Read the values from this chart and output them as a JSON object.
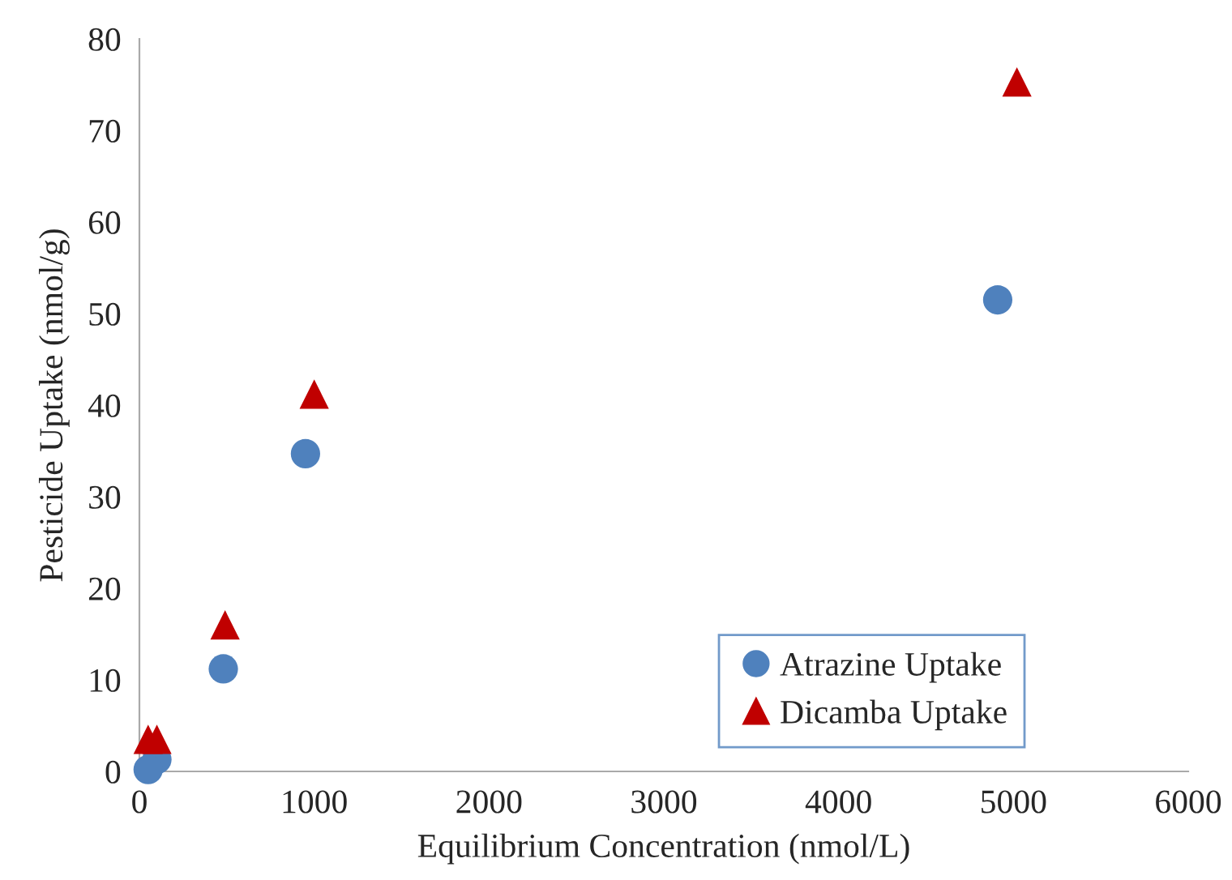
{
  "chart_data": {
    "type": "scatter",
    "xlabel": "Equilibrium Concentration (nmol/L)",
    "ylabel": "Pesticide Uptake (nmol/g)",
    "xlim": [
      0,
      6000
    ],
    "xticks": [
      0,
      1000,
      2000,
      3000,
      4000,
      5000,
      6000
    ],
    "ylim": [
      0,
      80
    ],
    "yticks": [
      0,
      10,
      20,
      30,
      40,
      50,
      60,
      70,
      80
    ],
    "grid": false,
    "legend": "bottom right",
    "series": [
      {
        "name": "Atrazine Uptake",
        "color": "#4f81bd",
        "marker": "circle",
        "x": [
          50,
          100,
          480,
          950,
          4910
        ],
        "values": [
          0.2,
          1.3,
          11.2,
          34.7,
          51.5
        ]
      },
      {
        "name": "Dicamba Uptake",
        "color": "#c00000",
        "marker": "triangle",
        "x": [
          50,
          100,
          490,
          1000,
          5020
        ],
        "values": [
          3.5,
          3.5,
          16,
          41.2,
          75.3
        ]
      }
    ]
  }
}
